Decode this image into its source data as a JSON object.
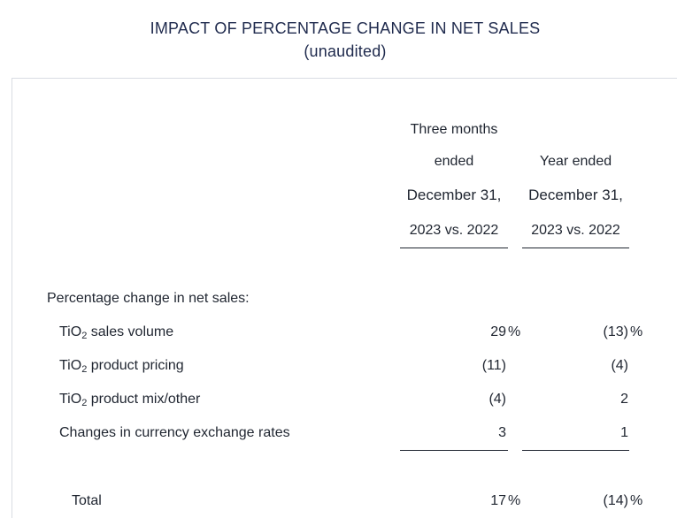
{
  "title": "IMPACT OF PERCENTAGE CHANGE IN NET SALES",
  "subtitle": "(unaudited)",
  "columns": [
    {
      "line1": "Three months",
      "line2": "ended",
      "line3": "December 31,",
      "line4": "2023 vs. 2022"
    },
    {
      "line1": "",
      "line2": "Year ended",
      "line3": "December 31,",
      "line4": "2023 vs. 2022"
    }
  ],
  "section_label": "Percentage change in net sales:",
  "rows": [
    {
      "prefix": "TiO",
      "sub": "2",
      "suffix": " sales volume",
      "v1": "29",
      "p1": "%",
      "v2": "(13)",
      "p2": "%"
    },
    {
      "prefix": "TiO",
      "sub": "2",
      "suffix": " product pricing",
      "v1": "(11)",
      "p1": "",
      "v2": "(4)",
      "p2": ""
    },
    {
      "prefix": "TiO",
      "sub": "2",
      "suffix": " product mix/other",
      "v1": "(4)",
      "p1": "",
      "v2": "2",
      "p2": ""
    },
    {
      "label": "Changes in currency exchange rates",
      "v1": "3",
      "p1": "",
      "v2": "1",
      "p2": ""
    }
  ],
  "total": {
    "label": "Total",
    "v1": "17",
    "p1": "%",
    "v2": "(14)",
    "p2": "%"
  }
}
